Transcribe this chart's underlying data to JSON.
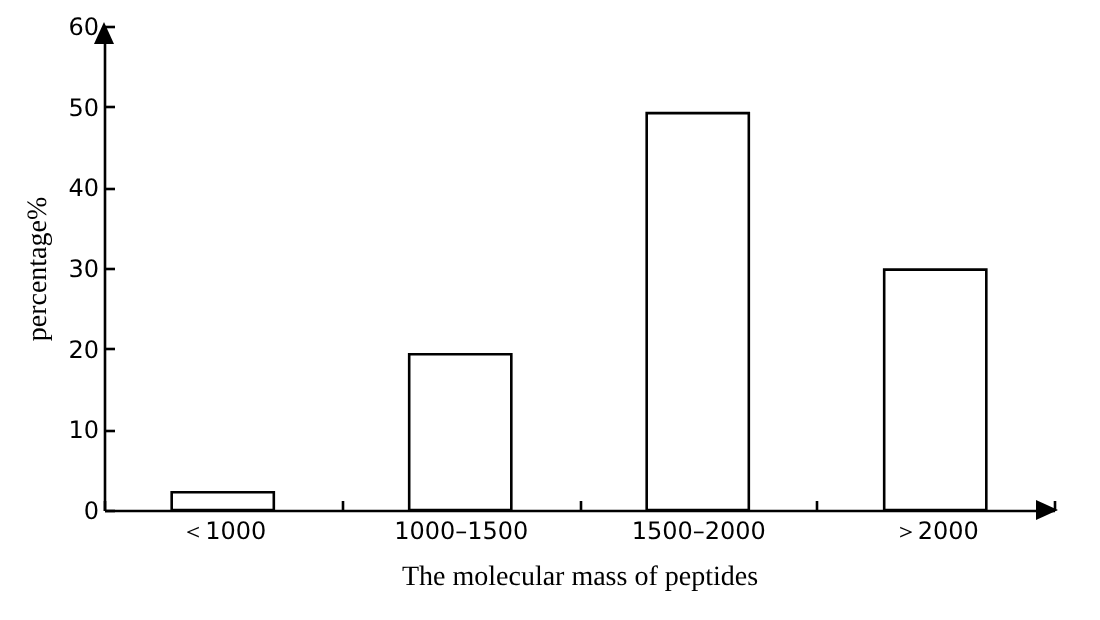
{
  "chart_data": {
    "type": "bar",
    "categories": [
      "＜1000",
      "1000–1500",
      "1500–2000",
      "＞2000"
    ],
    "values": [
      2.2,
      19.3,
      49.2,
      29.8
    ],
    "color": "#ffffff",
    "xlabel": "The molecular mass of peptides",
    "ylabel": "percentage%",
    "ylim": [
      0,
      60
    ],
    "yticks": [
      0,
      10,
      20,
      30,
      40,
      50,
      60
    ],
    "grid": false
  }
}
